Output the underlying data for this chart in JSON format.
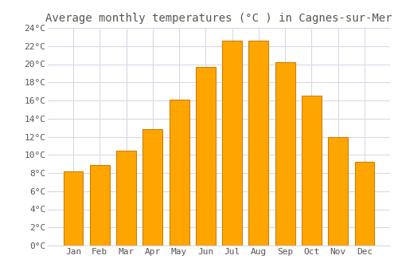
{
  "title": "Average monthly temperatures (°C ) in Cagnes-sur-Mer",
  "months": [
    "Jan",
    "Feb",
    "Mar",
    "Apr",
    "May",
    "Jun",
    "Jul",
    "Aug",
    "Sep",
    "Oct",
    "Nov",
    "Dec"
  ],
  "values": [
    8.2,
    8.9,
    10.5,
    12.8,
    16.1,
    19.7,
    22.6,
    22.6,
    20.2,
    16.5,
    12.0,
    9.2
  ],
  "bar_color": "#FFA500",
  "bar_edge_color": "#CC8000",
  "background_color": "#FFFFFF",
  "plot_bg_color": "#FFFFFF",
  "grid_color": "#D8D8E8",
  "text_color": "#555555",
  "ylim": [
    0,
    24
  ],
  "ytick_step": 2,
  "title_fontsize": 10,
  "tick_fontsize": 8,
  "font_family": "monospace",
  "bar_width": 0.75
}
